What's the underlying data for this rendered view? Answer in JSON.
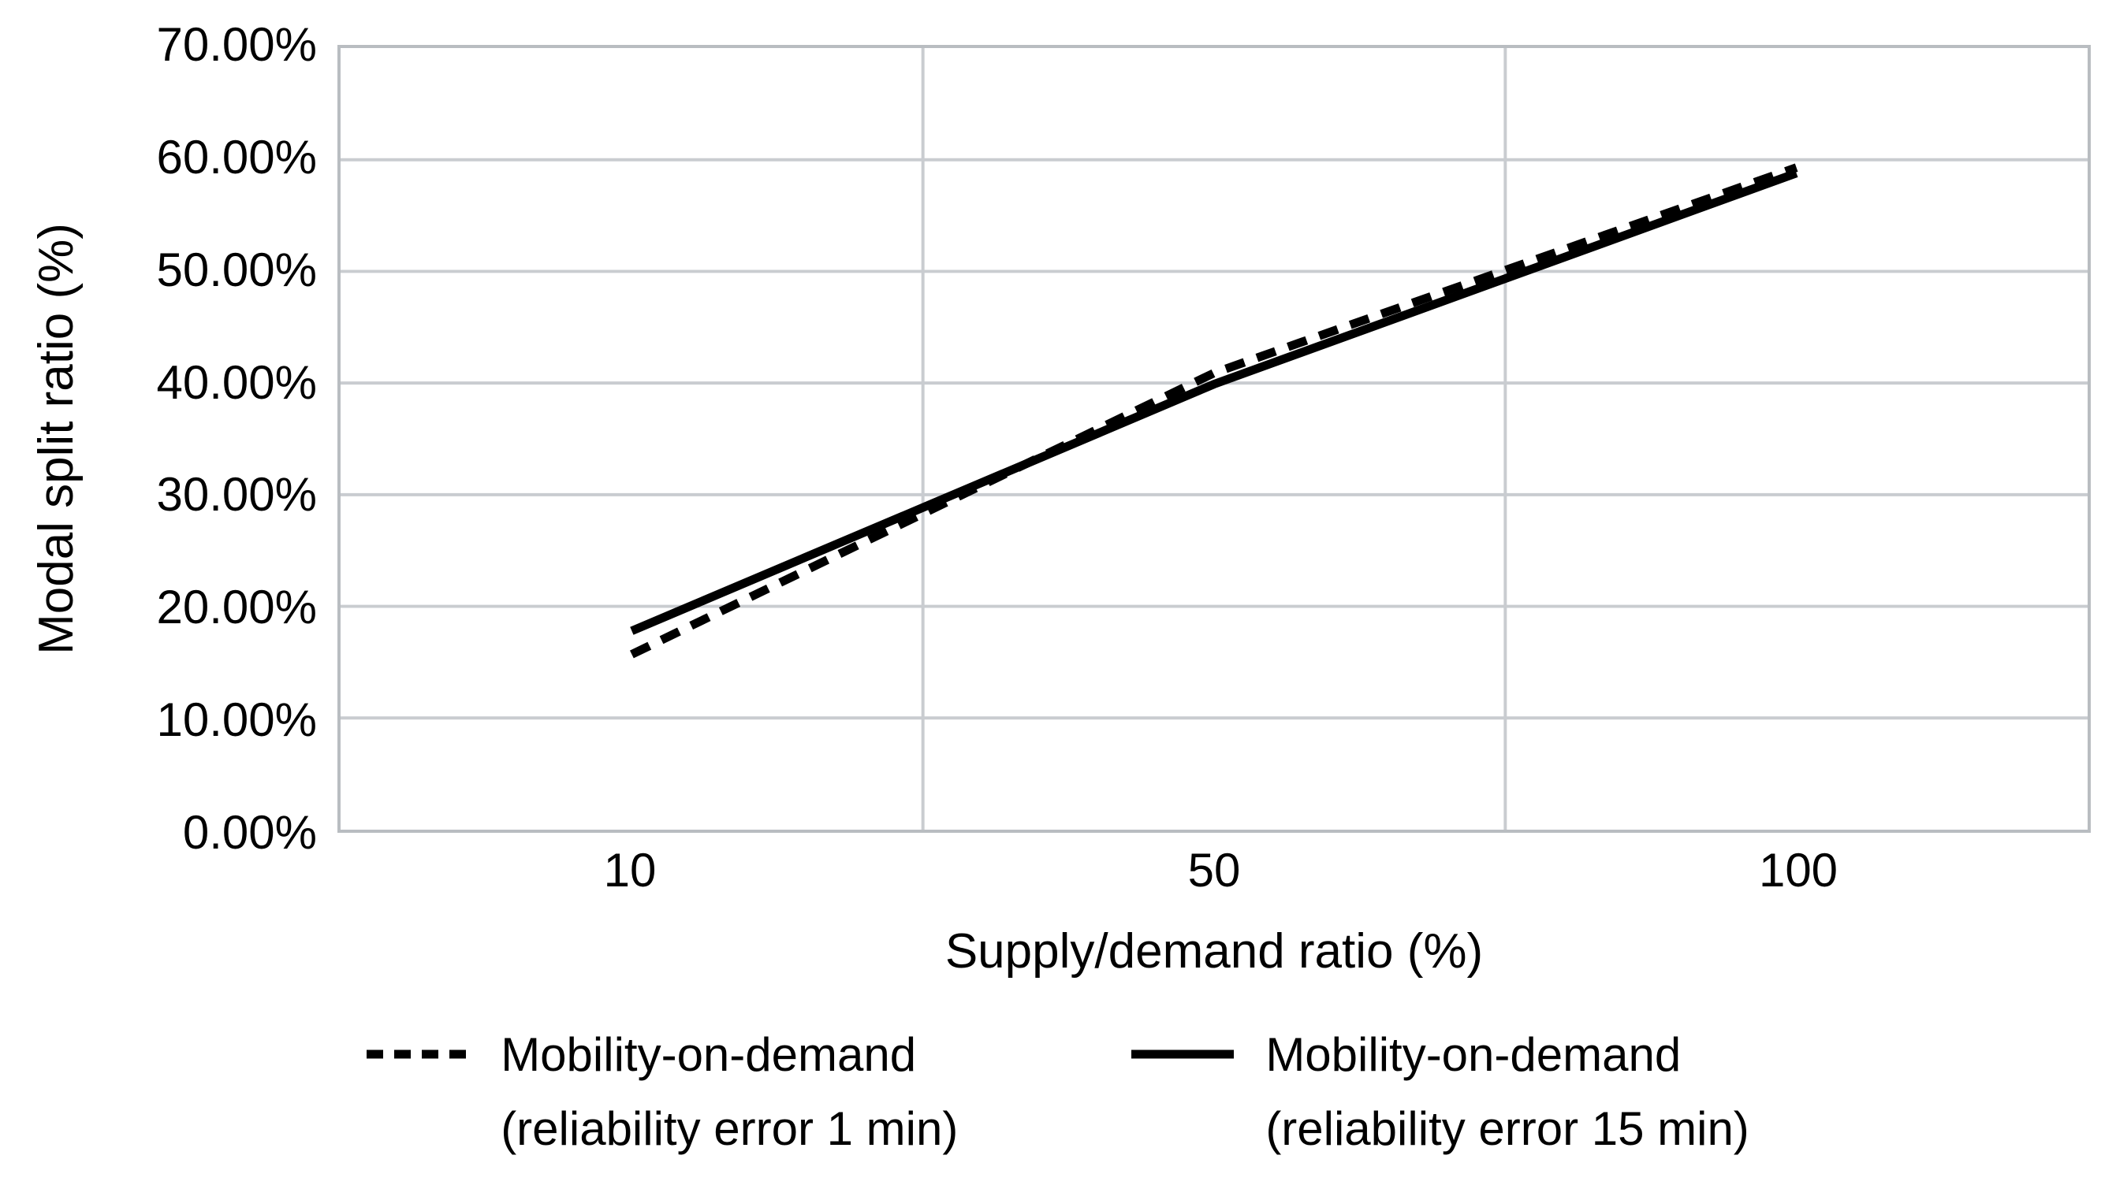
{
  "chart_data": {
    "type": "line",
    "categories": [
      "10",
      "50",
      "100"
    ],
    "x_tick_labels": [
      "10",
      "50",
      "100"
    ],
    "y_tick_labels": [
      "0.00%",
      "10.00%",
      "20.00%",
      "30.00%",
      "40.00%",
      "50.00%",
      "60.00%",
      "70.00%"
    ],
    "series": [
      {
        "name": "Mobility-on-demand (reliability error 1 min)",
        "style": "dashed",
        "values": [
          15.7,
          40.9,
          59.3
        ]
      },
      {
        "name": "Mobility-on-demand (reliability error 15 min)",
        "style": "solid",
        "values": [
          17.8,
          39.9,
          58.8
        ]
      }
    ],
    "xlabel": "Supply/demand ratio (%)",
    "ylabel": "Modal split ratio (%)",
    "ylim": [
      0,
      70
    ],
    "grid": true,
    "legend_position": "bottom"
  },
  "legend": {
    "items": [
      {
        "line1": "Mobility-on-demand",
        "line2": "(reliability error 1 min)",
        "style": "dashed"
      },
      {
        "line1": "Mobility-on-demand",
        "line2": "(reliability error 15 min)",
        "style": "solid"
      }
    ]
  },
  "colors": {
    "line": "#000000",
    "grid": "#c9ccd0",
    "axis_border": "#b9bdc1",
    "text": "#000000",
    "background": "#ffffff"
  }
}
